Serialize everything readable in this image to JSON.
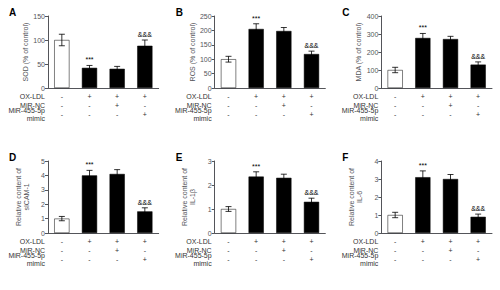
{
  "chart_data": [
    {
      "type": "bar",
      "title": "A",
      "ylabel": "SOD (% of control)",
      "ylim": [
        0,
        150
      ],
      "yticks": [
        0,
        50,
        100,
        150
      ],
      "values": [
        100,
        42,
        40,
        88
      ],
      "errors": [
        12,
        5,
        5,
        12
      ],
      "colors": [
        "white",
        "black",
        "black",
        "black"
      ],
      "edgecolor": "black",
      "annotations": [
        null,
        "***",
        null,
        "&&&"
      ],
      "x_table": [
        {
          "label": "OX-LDL",
          "marks": [
            "-",
            "+",
            "+",
            "+"
          ]
        },
        {
          "label": "MiR-NC",
          "marks": [
            "-",
            "-",
            "+",
            "-"
          ]
        },
        {
          "label": "MiR-455-5p\nmimic",
          "marks": [
            "-",
            "-",
            "-",
            "+"
          ]
        }
      ],
      "grid": false,
      "tick_labels": "y"
    },
    {
      "type": "bar",
      "title": "B",
      "ylabel": "ROS (% of control)",
      "ylim": [
        0,
        250
      ],
      "yticks": [
        0,
        50,
        100,
        150,
        200,
        250
      ],
      "values": [
        100,
        205,
        198,
        118
      ],
      "errors": [
        10,
        18,
        12,
        10
      ],
      "colors": [
        "white",
        "black",
        "black",
        "black"
      ],
      "edgecolor": "black",
      "annotations": [
        null,
        "***",
        null,
        "&&&"
      ],
      "x_table": [
        {
          "label": "OX-LDL",
          "marks": [
            "-",
            "+",
            "+",
            "+"
          ]
        },
        {
          "label": "MiR-NC",
          "marks": [
            "-",
            "-",
            "+",
            "-"
          ]
        },
        {
          "label": "MiR-455-5p\nmimic",
          "marks": [
            "-",
            "-",
            "-",
            "+"
          ]
        }
      ],
      "grid": false,
      "tick_labels": "y"
    },
    {
      "type": "bar",
      "title": "C",
      "ylabel": "MDA (% of control)",
      "ylim": [
        0,
        400
      ],
      "yticks": [
        0,
        100,
        200,
        300,
        400
      ],
      "values": [
        100,
        278,
        272,
        130
      ],
      "errors": [
        15,
        25,
        15,
        15
      ],
      "colors": [
        "white",
        "black",
        "black",
        "black"
      ],
      "edgecolor": "black",
      "annotations": [
        null,
        "***",
        null,
        "&&&"
      ],
      "x_table": [
        {
          "label": "OX-LDL",
          "marks": [
            "-",
            "+",
            "+",
            "+"
          ]
        },
        {
          "label": "MiR-NC",
          "marks": [
            "-",
            "-",
            "+",
            "-"
          ]
        },
        {
          "label": "MiR-455-5p\nmimic",
          "marks": [
            "-",
            "-",
            "-",
            "+"
          ]
        }
      ],
      "grid": false,
      "tick_labels": "y"
    },
    {
      "type": "bar",
      "title": "D",
      "ylabel": "Relative content of\nsICAM-1",
      "ylim": [
        0,
        5
      ],
      "yticks": [
        0,
        1,
        2,
        3,
        4,
        5
      ],
      "values": [
        1.0,
        4.0,
        4.1,
        1.5
      ],
      "errors": [
        0.15,
        0.35,
        0.3,
        0.25
      ],
      "colors": [
        "white",
        "black",
        "black",
        "black"
      ],
      "edgecolor": "black",
      "annotations": [
        null,
        "***",
        null,
        "&&&"
      ],
      "x_table": [
        {
          "label": "OX-LDL",
          "marks": [
            "-",
            "+",
            "+",
            "+"
          ]
        },
        {
          "label": "MiR-NC",
          "marks": [
            "-",
            "-",
            "+",
            "-"
          ]
        },
        {
          "label": "MiR-455-5p\nmimic",
          "marks": [
            "-",
            "-",
            "-",
            "+"
          ]
        }
      ],
      "grid": false,
      "tick_labels": "y"
    },
    {
      "type": "bar",
      "title": "E",
      "ylabel": "Relative content of\nIL-1β",
      "ylim": [
        0,
        3
      ],
      "yticks": [
        0,
        1,
        2,
        3
      ],
      "values": [
        1.0,
        2.35,
        2.3,
        1.3
      ],
      "errors": [
        0.1,
        0.2,
        0.15,
        0.15
      ],
      "colors": [
        "white",
        "black",
        "black",
        "black"
      ],
      "edgecolor": "black",
      "annotations": [
        null,
        "***",
        null,
        "&&&"
      ],
      "x_table": [
        {
          "label": "OX-LDL",
          "marks": [
            "-",
            "+",
            "+",
            "+"
          ]
        },
        {
          "label": "MiR-NC",
          "marks": [
            "-",
            "-",
            "+",
            "-"
          ]
        },
        {
          "label": "MiR-455-5p\nmimic",
          "marks": [
            "-",
            "-",
            "-",
            "+"
          ]
        }
      ],
      "grid": false,
      "tick_labels": "y"
    },
    {
      "type": "bar",
      "title": "F",
      "ylabel": "Relative content of\nIL-6",
      "ylim": [
        0,
        4
      ],
      "yticks": [
        0,
        1,
        2,
        3,
        4
      ],
      "values": [
        1.0,
        3.1,
        3.0,
        0.9
      ],
      "errors": [
        0.15,
        0.35,
        0.25,
        0.15
      ],
      "colors": [
        "white",
        "black",
        "black",
        "black"
      ],
      "edgecolor": "black",
      "annotations": [
        null,
        "***",
        null,
        "&&&"
      ],
      "x_table": [
        {
          "label": "OX-LDL",
          "marks": [
            "-",
            "+",
            "+",
            "+"
          ]
        },
        {
          "label": "MiR-NC",
          "marks": [
            "-",
            "-",
            "+",
            "-"
          ]
        },
        {
          "label": "MiR-455-5p\nmimic",
          "marks": [
            "-",
            "-",
            "-",
            "+"
          ]
        }
      ],
      "grid": false,
      "tick_labels": "y"
    }
  ]
}
